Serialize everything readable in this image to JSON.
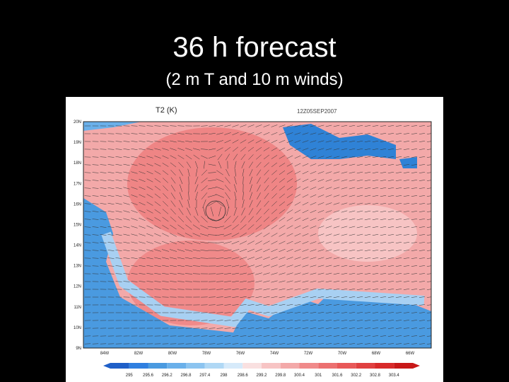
{
  "slide": {
    "title": "36 h forecast",
    "subtitle": "(2 m T and 10 m winds)"
  },
  "map": {
    "field_label": "T2 (K)",
    "valid_time": "12Z05SEP2007",
    "lat_labels": [
      "20N",
      "19N",
      "18N",
      "17N",
      "16N",
      "15N",
      "14N",
      "13N",
      "12N",
      "11N",
      "10N",
      "9N"
    ],
    "lon_labels": [
      "84W",
      "82W",
      "80W",
      "78W",
      "76W",
      "74W",
      "72W",
      "70W",
      "68W",
      "66W"
    ],
    "colorbar_labels": [
      "295",
      "295.6",
      "296.2",
      "296.8",
      "297.4",
      "298",
      "298.6",
      "299.2",
      "299.8",
      "300.4",
      "301",
      "301.6",
      "302.2",
      "302.8",
      "303.4"
    ]
  }
}
